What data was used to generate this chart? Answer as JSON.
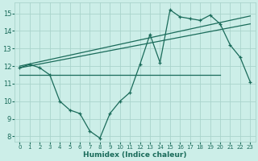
{
  "xlabel": "Humidex (Indice chaleur)",
  "bg_color": "#cceee8",
  "grid_color": "#aad4cc",
  "line_color": "#1a6b5a",
  "xlim": [
    -0.5,
    23.5
  ],
  "ylim": [
    7.7,
    15.6
  ],
  "yticks": [
    8,
    9,
    10,
    11,
    12,
    13,
    14,
    15
  ],
  "xticks": [
    0,
    1,
    2,
    3,
    4,
    5,
    6,
    7,
    8,
    9,
    10,
    11,
    12,
    13,
    14,
    15,
    16,
    17,
    18,
    19,
    20,
    21,
    22,
    23
  ],
  "series1_x": [
    0,
    1,
    2,
    3,
    4,
    5,
    6,
    7,
    8,
    9,
    10,
    11,
    12,
    13,
    14,
    15,
    16,
    17,
    18,
    19,
    20,
    21,
    22,
    23
  ],
  "series1_y": [
    11.9,
    12.1,
    11.9,
    11.5,
    10.0,
    9.5,
    9.3,
    8.3,
    7.9,
    9.3,
    10.0,
    10.5,
    12.1,
    13.8,
    12.2,
    15.2,
    14.8,
    14.7,
    14.6,
    14.9,
    14.4,
    13.2,
    12.5,
    11.1
  ],
  "series2_x": [
    0,
    20
  ],
  "series2_y": [
    11.5,
    11.5
  ],
  "series3_x": [
    0,
    23
  ],
  "series3_y": [
    11.9,
    14.4
  ],
  "series4_x": [
    0,
    23
  ],
  "series4_y": [
    12.0,
    14.85
  ]
}
